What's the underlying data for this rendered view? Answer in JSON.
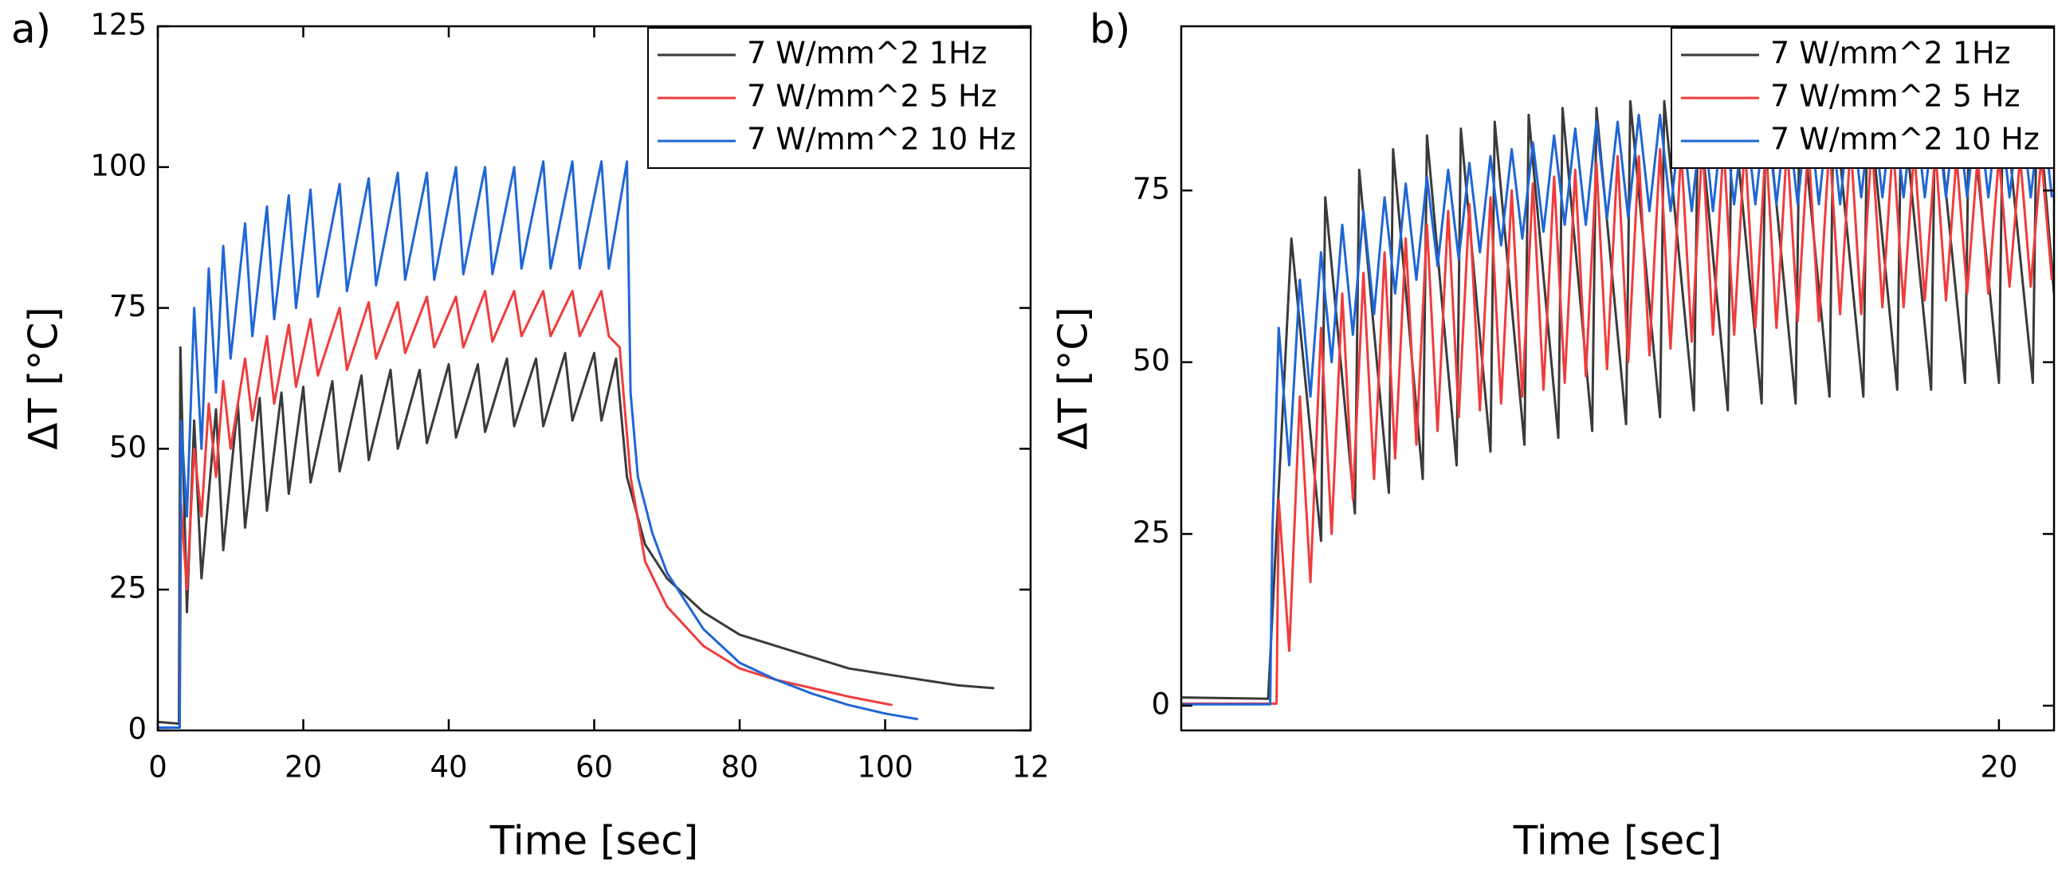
{
  "chart_data": [
    {
      "type": "line",
      "panel_label": "a)",
      "xlabel": "Time [sec]",
      "ylabel": "ΔT [°C]",
      "xlim": [
        0,
        120
      ],
      "ylim": [
        0,
        125
      ],
      "xticks": [
        0,
        20,
        40,
        60,
        80,
        100,
        {
          "value": 120,
          "label": "12"
        }
      ],
      "yticks": [
        0,
        25,
        50,
        75,
        100,
        125
      ],
      "legend": "upper right",
      "series": [
        {
          "name": "7 W/mm^2 1Hz",
          "color": "#3a3a3a",
          "x": [
            0,
            2.9,
            3.1,
            4,
            5,
            6,
            8,
            9,
            11,
            12,
            14,
            15,
            17,
            18,
            20,
            21,
            24,
            25,
            28,
            29,
            32,
            33,
            36,
            37,
            40,
            41,
            44,
            45,
            48,
            49,
            52,
            53,
            56,
            57,
            60,
            61,
            63,
            64.5,
            67,
            70,
            75,
            80,
            85,
            90,
            95,
            100,
            105,
            110,
            115
          ],
          "values": [
            1.5,
            1.2,
            68,
            21,
            55,
            27,
            57,
            32,
            58,
            36,
            59,
            39,
            60,
            42,
            61,
            44,
            62,
            46,
            63,
            48,
            64,
            50,
            64,
            51,
            65,
            52,
            65,
            53,
            66,
            54,
            66,
            54,
            67,
            55,
            67,
            55,
            66,
            45,
            33,
            27,
            21,
            17,
            15,
            13,
            11,
            10,
            9,
            8,
            7.5
          ]
        },
        {
          "name": "7 W/mm^2 5 Hz",
          "color": "#f03c3c",
          "x": [
            0,
            3.0,
            3.2,
            4,
            5,
            6,
            7,
            8,
            9,
            10,
            12,
            13,
            15,
            16,
            18,
            19,
            21,
            22,
            25,
            26,
            29,
            30,
            33,
            34,
            37,
            38,
            41,
            42,
            45,
            46,
            49,
            50,
            53,
            54,
            57,
            58,
            61,
            62,
            63.5,
            65,
            67,
            70,
            75,
            80,
            85,
            90,
            95,
            101
          ],
          "values": [
            0.5,
            0.5,
            40,
            25,
            50,
            38,
            58,
            45,
            62,
            50,
            66,
            55,
            70,
            58,
            72,
            61,
            73,
            63,
            75,
            64,
            76,
            66,
            76,
            67,
            77,
            68,
            77,
            68,
            78,
            69,
            78,
            70,
            78,
            70,
            78,
            70,
            78,
            70,
            68,
            45,
            30,
            22,
            15,
            11,
            9,
            7.5,
            6,
            4.5
          ]
        },
        {
          "name": "7 W/mm^2 10 Hz",
          "color": "#1f66d6",
          "x": [
            0,
            3,
            3.2,
            4,
            5,
            6,
            7,
            8,
            9,
            10,
            12,
            13,
            15,
            16,
            18,
            19,
            21,
            22,
            25,
            26,
            29,
            30,
            33,
            34,
            37,
            38,
            41,
            42,
            45,
            46,
            49,
            50,
            53,
            54,
            57,
            58,
            61,
            62,
            64.5,
            65,
            66,
            68,
            70,
            75,
            80,
            85,
            90,
            95,
            100,
            104.5
          ],
          "values": [
            0.5,
            0.5,
            55,
            38,
            75,
            50,
            82,
            60,
            86,
            66,
            90,
            70,
            93,
            73,
            95,
            75,
            96,
            77,
            97,
            78,
            98,
            79,
            99,
            80,
            99,
            80,
            100,
            81,
            100,
            81,
            100,
            82,
            101,
            82,
            101,
            82,
            101,
            82,
            101,
            60,
            45,
            35,
            28,
            18,
            12,
            9,
            6.5,
            4.5,
            3,
            2
          ]
        }
      ]
    },
    {
      "type": "line",
      "panel_label": "b)",
      "xlabel": "Time [sec]",
      "ylabel": "ΔT [°C]",
      "xlim": [
        0.7,
        21.3
      ],
      "ylim": [
        -3.6,
        98.9
      ],
      "xticks": [
        20
      ],
      "yticks": [
        0,
        25,
        50,
        75
      ],
      "legend": "upper right",
      "series": [
        {
          "name": "7 W/mm^2 1Hz",
          "color": "#3a3a3a",
          "x": [
            0.7,
            2.75,
            3.3,
            4.0,
            4.1,
            4.8,
            4.9,
            5.6,
            5.7,
            6.4,
            6.5,
            7.2,
            7.3,
            8.0,
            8.1,
            8.8,
            8.9,
            9.6,
            9.7,
            10.4,
            10.5,
            11.2,
            11.3,
            12.0,
            12.1,
            12.8,
            12.9,
            13.6,
            13.7,
            14.4,
            14.5,
            15.2,
            15.3,
            16.0,
            16.1,
            16.8,
            16.9,
            17.6,
            17.7,
            18.4,
            18.5,
            19.2,
            19.3,
            20.0,
            20.1,
            20.8,
            20.9,
            21.3
          ],
          "values": [
            1.2,
            1.0,
            68,
            24,
            74,
            28,
            78,
            31,
            81,
            33,
            83,
            35,
            84,
            37,
            85,
            38,
            86,
            39,
            87,
            40,
            87,
            41,
            88,
            42,
            88,
            43,
            88,
            43,
            89,
            44,
            89,
            44,
            89,
            45,
            89,
            45,
            90,
            46,
            90,
            46,
            90,
            47,
            90,
            47,
            90,
            47,
            90,
            60
          ]
        },
        {
          "name": "7 W/mm^2 5 Hz",
          "color": "#f03c3c",
          "x": [
            0.7,
            2.95,
            3.0,
            3.25,
            3.5,
            3.75,
            4.0,
            4.25,
            4.5,
            4.75,
            5.0,
            5.25,
            5.5,
            5.75,
            6.0,
            6.25,
            6.5,
            6.75,
            7.0,
            7.25,
            7.5,
            7.75,
            8.0,
            8.25,
            8.5,
            8.75,
            9.0,
            9.25,
            9.5,
            9.75,
            10.0,
            10.25,
            10.5,
            10.75,
            11.0,
            11.25,
            11.5,
            11.75,
            12.0,
            12.25,
            12.5,
            12.75,
            13.0,
            13.25,
            13.5,
            13.75,
            14.0,
            14.25,
            14.5,
            14.75,
            15.0,
            15.25,
            15.5,
            15.75,
            16.0,
            16.25,
            16.5,
            16.75,
            17.0,
            17.25,
            17.5,
            17.75,
            18.0,
            18.25,
            18.5,
            18.75,
            19.0,
            19.25,
            19.5,
            19.75,
            20.0,
            20.25,
            20.5,
            20.75,
            21.0,
            21.25
          ],
          "values": [
            0.3,
            0.3,
            30,
            8,
            45,
            18,
            55,
            25,
            60,
            30,
            63,
            33,
            66,
            36,
            68,
            38,
            70,
            40,
            72,
            42,
            73,
            43,
            74,
            44,
            75,
            45,
            76,
            46,
            77,
            47,
            78,
            48,
            79,
            49,
            80,
            50,
            80,
            51,
            81,
            52,
            81,
            53,
            82,
            54,
            82,
            54,
            82,
            55,
            82,
            55,
            82,
            56,
            82,
            56,
            82,
            57,
            82,
            57,
            82,
            58,
            82,
            58,
            81,
            59,
            81,
            59,
            80,
            60,
            80,
            60,
            80,
            61,
            80,
            61,
            80,
            62
          ]
        },
        {
          "name": "7 W/mm^2 10 Hz",
          "color": "#1f66d6",
          "x": [
            0.7,
            2.8,
            2.85,
            3.0,
            3.25,
            3.5,
            3.75,
            4.0,
            4.25,
            4.5,
            4.75,
            5.0,
            5.25,
            5.5,
            5.75,
            6.0,
            6.25,
            6.5,
            6.75,
            7.0,
            7.25,
            7.5,
            7.75,
            8.0,
            8.25,
            8.5,
            8.75,
            9.0,
            9.25,
            9.5,
            9.75,
            10.0,
            10.25,
            10.5,
            10.75,
            11.0,
            11.25,
            11.5,
            11.75,
            12.0,
            12.25,
            12.5,
            12.75,
            13.0,
            13.25,
            13.5,
            13.75,
            14.0,
            14.25,
            14.5,
            14.75,
            15.0,
            15.25,
            15.5,
            15.75,
            16.0,
            16.25,
            16.5,
            16.75,
            17.0,
            17.25,
            17.5,
            17.75,
            18.0,
            18.25,
            18.5,
            18.75,
            19.0,
            19.25,
            19.5,
            19.75,
            20.0,
            20.25,
            20.5,
            20.75,
            21.0,
            21.25
          ],
          "values": [
            0.2,
            0.2,
            25,
            55,
            35,
            62,
            45,
            66,
            50,
            70,
            54,
            72,
            57,
            74,
            60,
            76,
            62,
            77,
            64,
            78,
            65,
            79,
            66,
            80,
            67,
            81,
            68,
            82,
            69,
            83,
            70,
            84,
            70,
            85,
            71,
            85,
            71,
            86,
            72,
            86,
            72,
            86,
            72,
            87,
            72,
            87,
            73,
            87,
            73,
            87,
            73,
            87,
            73,
            88,
            73,
            88,
            73,
            88,
            74,
            88,
            74,
            88,
            74,
            88,
            74,
            88,
            74,
            88,
            74,
            88,
            74,
            88,
            74,
            88,
            74,
            88,
            74
          ]
        }
      ]
    }
  ]
}
